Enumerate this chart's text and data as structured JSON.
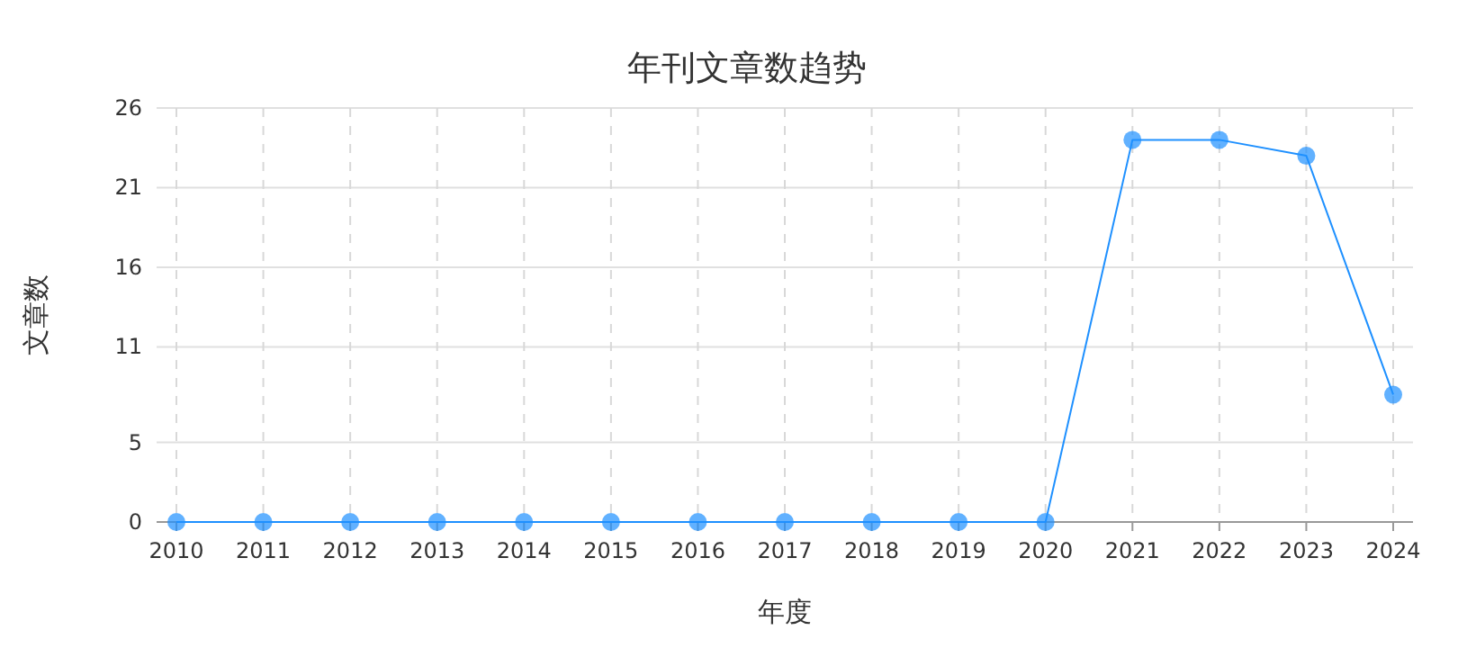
{
  "chart_data": {
    "type": "line",
    "title": "年刊文章数趋势",
    "xlabel": "年度",
    "ylabel": "文章数",
    "categories": [
      "2010",
      "2011",
      "2012",
      "2013",
      "2014",
      "2015",
      "2016",
      "2017",
      "2018",
      "2019",
      "2020",
      "2021",
      "2022",
      "2023",
      "2024"
    ],
    "series": [
      {
        "color": "#1e90ff",
        "values": [
          0,
          0,
          0,
          0,
          0,
          0,
          0,
          0,
          0,
          0,
          0,
          24,
          24,
          23,
          8
        ]
      }
    ],
    "ylim": [
      0,
      26
    ],
    "yticks": [
      0,
      5,
      11,
      16,
      21,
      26
    ],
    "grid": true,
    "marker": "circle",
    "line_style": "solid"
  }
}
